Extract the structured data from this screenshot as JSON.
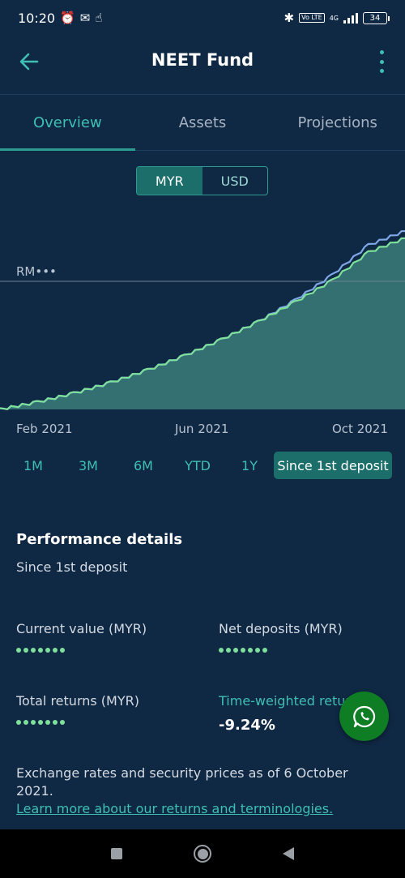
{
  "status_bar": {
    "time": "10:20",
    "left_icons": [
      "alarm-icon",
      "gmail-icon",
      "touch-icon"
    ],
    "network": "4G",
    "volte": "Vo LTE",
    "battery": "34"
  },
  "app_bar": {
    "title": "NEET Fund",
    "back_icon": "back-arrow-icon",
    "menu_icon": "more-vertical-icon"
  },
  "tabs": [
    {
      "label": "Overview",
      "active": true
    },
    {
      "label": "Assets",
      "active": false
    },
    {
      "label": "Projections",
      "active": false
    }
  ],
  "currency": {
    "options": [
      "MYR",
      "USD"
    ],
    "selected": "MYR"
  },
  "chart_data": {
    "type": "area",
    "reference_label": "RM•••",
    "x_ticks": [
      "Feb 2021",
      "Jun 2021",
      "Oct 2021"
    ],
    "series": [
      {
        "color": "#7fa8e6",
        "values": [
          0.0,
          0.04,
          0.09,
          0.15,
          0.22,
          0.3,
          0.39,
          0.49,
          0.61,
          0.75,
          0.92,
          1.0
        ]
      },
      {
        "color": "#7ee09b",
        "values": [
          0.0,
          0.04,
          0.09,
          0.15,
          0.22,
          0.3,
          0.39,
          0.49,
          0.6,
          0.72,
          0.88,
          0.96
        ]
      }
    ],
    "fill_color": "#3b7b7a",
    "grid": false
  },
  "ranges": {
    "options": [
      "1M",
      "3M",
      "6M",
      "YTD",
      "1Y",
      "Since 1st deposit"
    ],
    "selected": "Since 1st deposit"
  },
  "performance": {
    "title": "Performance details",
    "subtitle": "Since 1st deposit",
    "current_value_label": "Current value (MYR)",
    "net_deposits_label": "Net deposits (MYR)",
    "total_returns_label": "Total returns (MYR)",
    "twr_label": "Time-weighted retur",
    "twr_value": "-9.24%"
  },
  "whatsapp_icon": "whatsapp-icon",
  "footnote": {
    "text": "Exchange rates and security prices as of 6 October 2021.",
    "link": "Learn more about our returns and terminologies."
  },
  "colors": {
    "background": "#0f2844",
    "accent": "#3fbfb4",
    "active_pill": "#1b6e69",
    "whatsapp": "#0f7d24"
  }
}
